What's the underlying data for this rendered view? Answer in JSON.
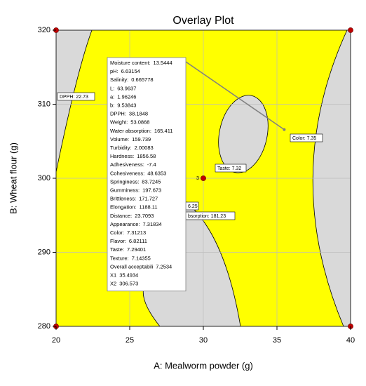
{
  "chart_data": {
    "type": "overlay",
    "title": "Overlay Plot",
    "x_label": "A: Mealworm powder (g)",
    "y_label": "B: Wheat flour (g)",
    "xlim": [
      20,
      40
    ],
    "xticks": [
      20,
      25,
      30,
      35,
      40
    ],
    "ylim": [
      280,
      320
    ],
    "yticks": [
      280,
      290,
      300,
      310,
      320
    ],
    "grid": true,
    "feasible_color": "#ffff00",
    "infeasible_color": "#d9d9d9",
    "points": {
      "color": "#c00000",
      "x": [
        20,
        20,
        40,
        40,
        30
      ],
      "y": [
        280,
        320,
        280,
        320,
        300
      ]
    },
    "point_label": "3",
    "contour_labels": [
      "DPPH: 22.73",
      "Color: 7.35",
      "Taste: 7.32",
      "6.25",
      "bsorption: 181.23"
    ],
    "flag": {
      "x": 35.4934,
      "y": 306.573
    },
    "tooltip": [
      [
        "Moisture content:",
        "13.5444"
      ],
      [
        "pH:",
        "6.63154"
      ],
      [
        "Salinity:",
        "0.665778"
      ],
      [
        "L:",
        "63.9637"
      ],
      [
        "a:",
        "1.96246"
      ],
      [
        "b:",
        "9.53843"
      ],
      [
        "DPPH:",
        "38.1848"
      ],
      [
        "Weight:",
        "53.0868"
      ],
      [
        "Water absorption:",
        "165.411"
      ],
      [
        "Volume:",
        "159.739"
      ],
      [
        "Turbidity:",
        "2.00083"
      ],
      [
        "Hardness:",
        "1856.58"
      ],
      [
        "Adhesiveness:",
        "-7.4"
      ],
      [
        "Cohesiveness:",
        "48.6353"
      ],
      [
        "Springiness:",
        "83.7245"
      ],
      [
        "Gumminess:",
        "197.673"
      ],
      [
        "Brittleness:",
        "171.727"
      ],
      [
        "Elongation:",
        "1188.11"
      ],
      [
        "Distance:",
        "23.7093"
      ],
      [
        "Appearance:",
        "7.31834"
      ],
      [
        "Color:",
        "7.31213"
      ],
      [
        "Flavor:",
        "6.82111"
      ],
      [
        "Taste:",
        "7.29401"
      ],
      [
        "Texture:",
        "7.14355"
      ],
      [
        "Overall acceptabili",
        "7.2534"
      ],
      [
        "X1",
        "35.4934"
      ],
      [
        "X2",
        "306.573"
      ]
    ]
  }
}
